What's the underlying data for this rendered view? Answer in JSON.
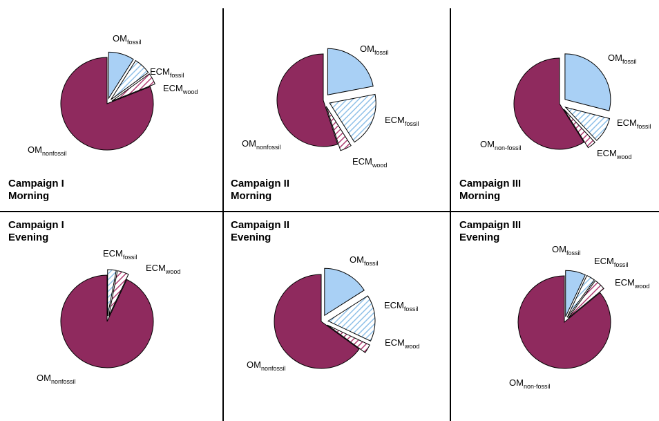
{
  "colors": {
    "om_nonfossil": "#8f2a5e",
    "om_fossil": "#a9d0f5",
    "ecm_fossil_hatch": "#8fc0e8",
    "ecm_wood_hatch": "#b03c72",
    "divider": "#000000",
    "outline": "#000000"
  },
  "chart_data": [
    {
      "type": "pie",
      "title_line1": "Campaign I",
      "title_line2": "Morning",
      "slices": [
        {
          "key": "om_fossil",
          "base": "OM",
          "sub": "fossil",
          "value": 9
        },
        {
          "key": "ecm_fossil",
          "base": "ECM",
          "sub": "fossil",
          "value": 6
        },
        {
          "key": "ecm_wood",
          "base": "ECM",
          "sub": "wood",
          "value": 4
        },
        {
          "key": "om_nonfossil",
          "base": "OM",
          "sub": "nonfossil",
          "value": 81
        }
      ]
    },
    {
      "type": "pie",
      "title_line1": "Campaign II",
      "title_line2": "Morning",
      "slices": [
        {
          "key": "om_fossil",
          "base": "OM",
          "sub": "fossil",
          "value": 22
        },
        {
          "key": "ecm_fossil",
          "base": "ECM",
          "sub": "fossil",
          "value": 19
        },
        {
          "key": "ecm_wood",
          "base": "ECM",
          "sub": "wood",
          "value": 4
        },
        {
          "key": "om_nonfossil",
          "base": "OM",
          "sub": "nonfossil",
          "value": 55
        }
      ]
    },
    {
      "type": "pie",
      "title_line1": "Campaign III",
      "title_line2": "Morning",
      "slices": [
        {
          "key": "om_fossil",
          "base": "OM",
          "sub": "fossil",
          "value": 29
        },
        {
          "key": "ecm_fossil",
          "base": "ECM",
          "sub": "fossil",
          "value": 9
        },
        {
          "key": "ecm_wood",
          "base": "ECM",
          "sub": "wood",
          "value": 3
        },
        {
          "key": "om_nonfossil",
          "base": "OM",
          "sub": "non-fossil",
          "value": 59
        }
      ]
    },
    {
      "type": "pie",
      "title_line1": "Campaign I",
      "title_line2": "Evening",
      "slices": [
        {
          "key": "ecm_fossil",
          "base": "ECM",
          "sub": "fossil",
          "value": 3
        },
        {
          "key": "ecm_wood",
          "base": "ECM",
          "sub": "wood",
          "value": 4
        },
        {
          "key": "om_nonfossil",
          "base": "OM",
          "sub": "nonfossil",
          "value": 93
        }
      ]
    },
    {
      "type": "pie",
      "title_line1": "Campaign II",
      "title_line2": "Evening",
      "slices": [
        {
          "key": "om_fossil",
          "base": "OM",
          "sub": "fossil",
          "value": 16
        },
        {
          "key": "ecm_fossil",
          "base": "ECM",
          "sub": "fossil",
          "value": 16
        },
        {
          "key": "ecm_wood",
          "base": "ECM",
          "sub": "wood",
          "value": 3
        },
        {
          "key": "om_nonfossil",
          "base": "OM",
          "sub": "nonfossil",
          "value": 65
        }
      ]
    },
    {
      "type": "pie",
      "title_line1": "Campaign III",
      "title_line2": "Evening",
      "slices": [
        {
          "key": "om_fossil",
          "base": "OM",
          "sub": "fossil",
          "value": 7
        },
        {
          "key": "ecm_fossil",
          "base": "ECM",
          "sub": "fossil",
          "value": 3
        },
        {
          "key": "ecm_wood",
          "base": "ECM",
          "sub": "wood",
          "value": 4
        },
        {
          "key": "om_nonfossil",
          "base": "OM",
          "sub": "non-fossil",
          "value": 86
        }
      ]
    }
  ]
}
